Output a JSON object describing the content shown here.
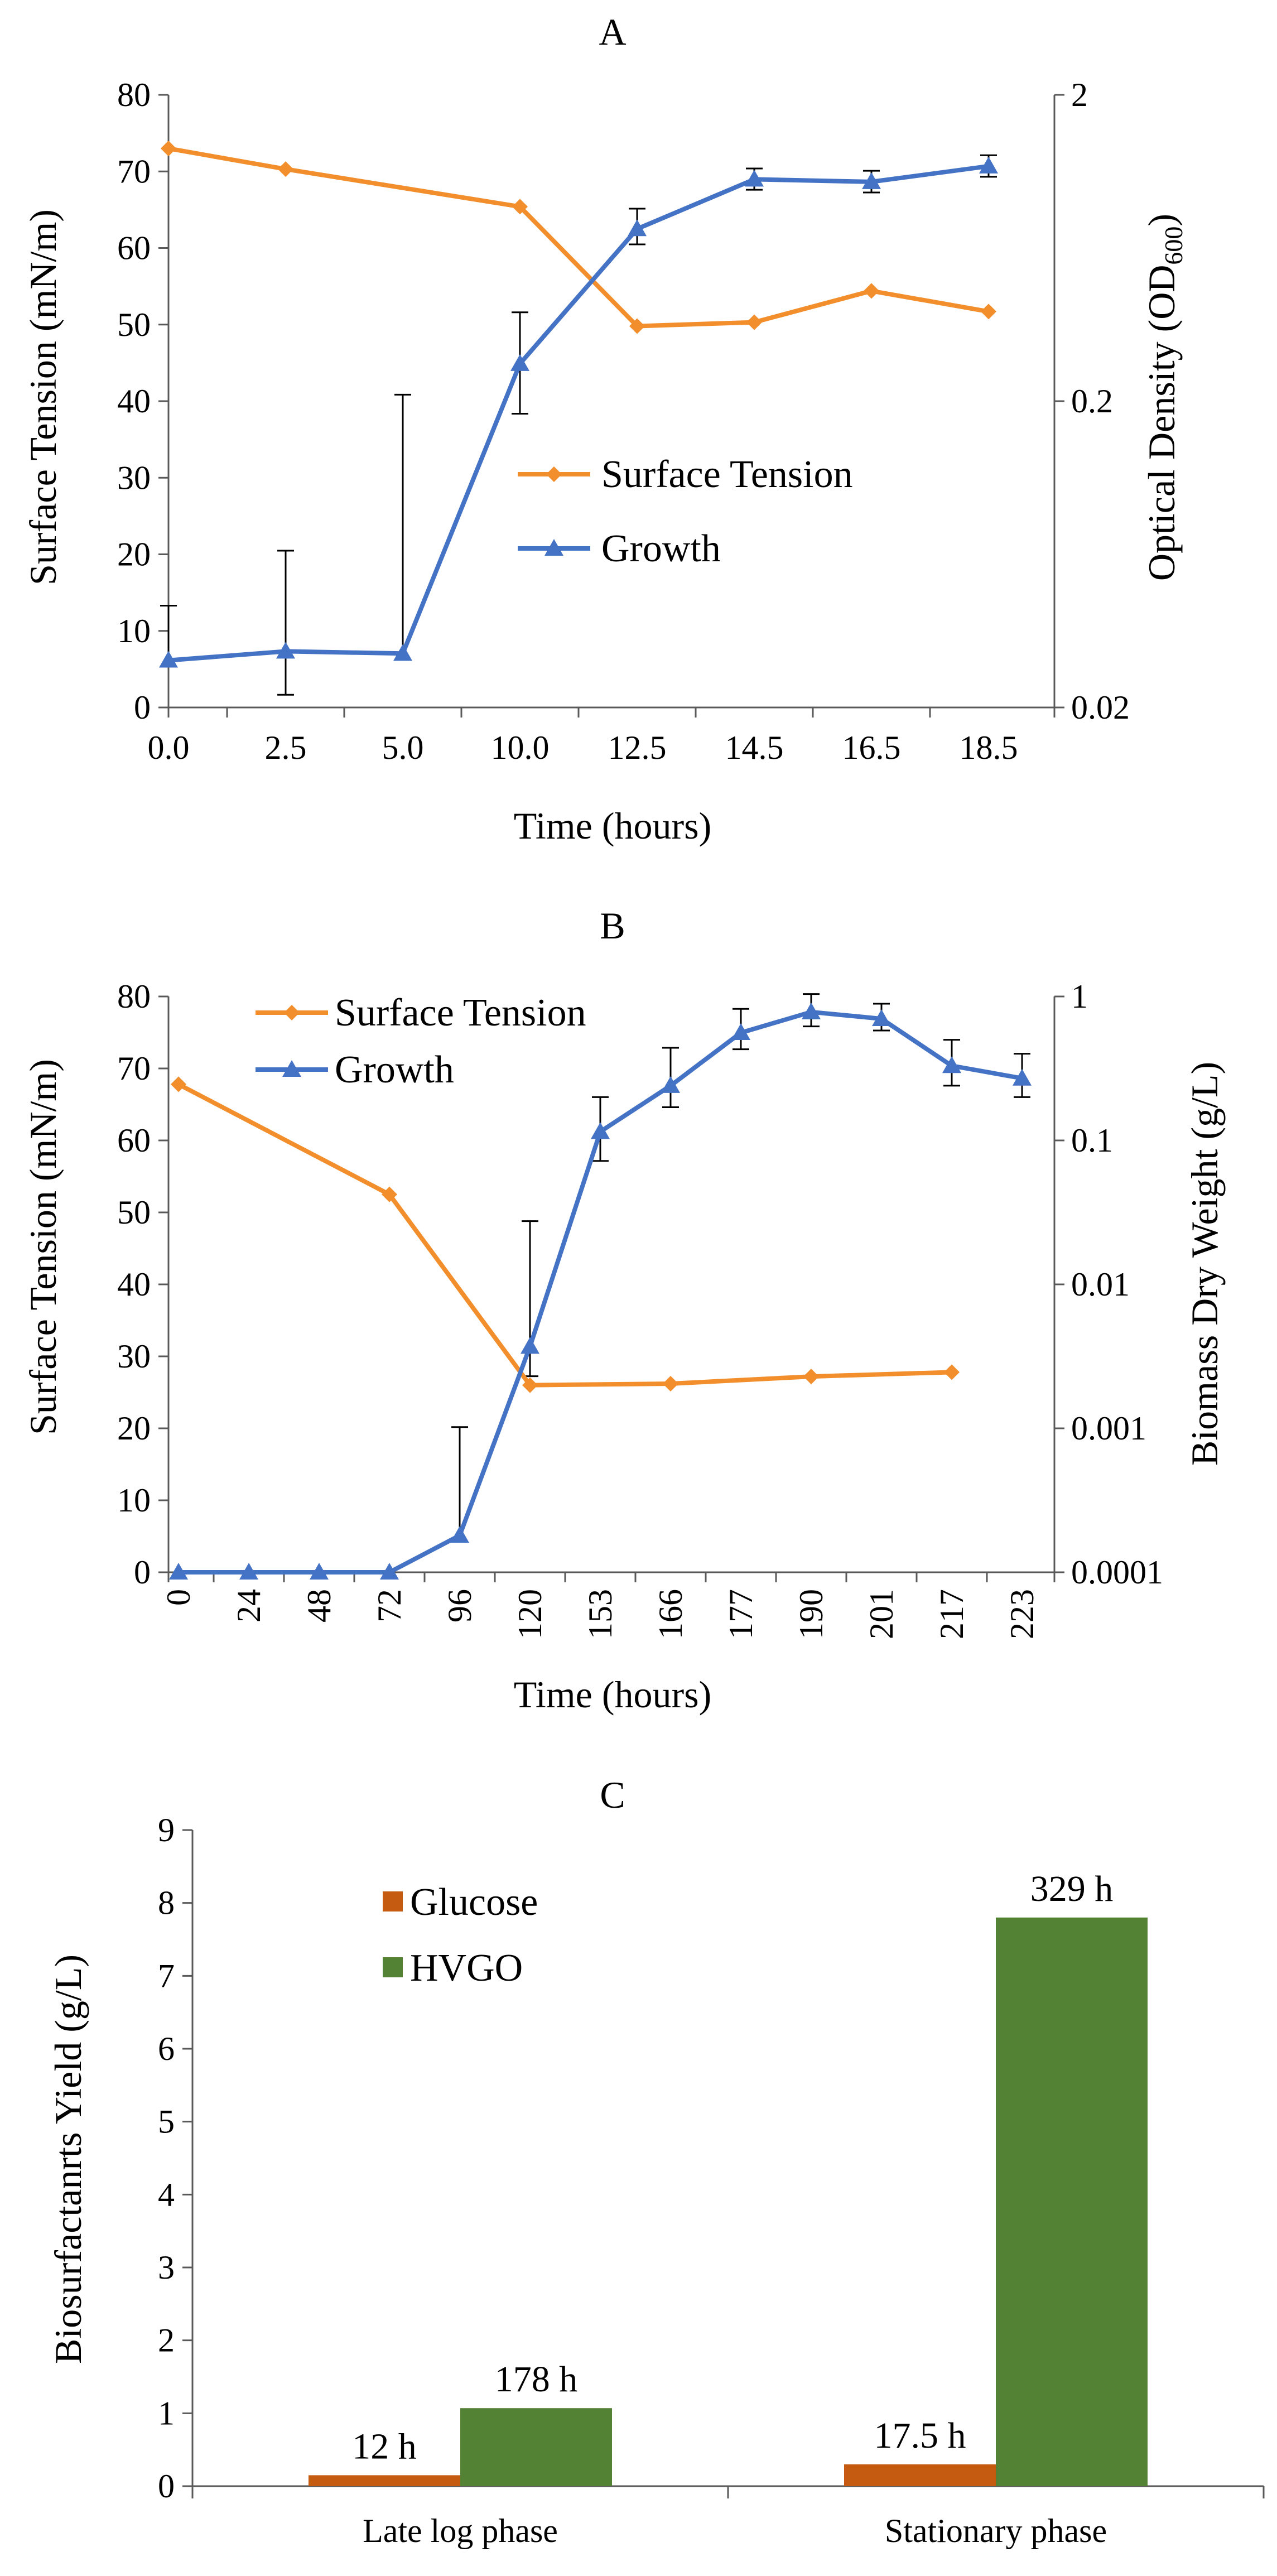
{
  "chart_data": [
    {
      "panel": "A",
      "title": "A",
      "type": "line",
      "xlabel": "Time (hours)",
      "ylabel_left": "Surface Tension (mN/m)",
      "ylabel_right": "Optical Density (OD600)",
      "ylabel_right_parts": {
        "main": "Optical Density (OD",
        "sub": "600",
        "close": ")"
      },
      "x_categories": [
        "0.0",
        "2.5",
        "5.0",
        "10.0",
        "12.5",
        "14.5",
        "16.5",
        "18.5"
      ],
      "ylim_left": [
        0,
        80
      ],
      "yticks_left": [
        "0",
        "10",
        "20",
        "30",
        "40",
        "50",
        "60",
        "70",
        "80"
      ],
      "right_axis_scale": "log",
      "ylim_right": [
        0.02,
        2
      ],
      "yticks_right": [
        "0.02",
        "0.2",
        "2"
      ],
      "series": [
        {
          "name": "Surface Tension",
          "axis": "left",
          "color": "#F28E2B",
          "marker": "diamond",
          "values": [
            73.0,
            70.3,
            null,
            65.4,
            49.8,
            50.3,
            54.4,
            51.7
          ]
        },
        {
          "name": "Growth",
          "axis": "right",
          "color": "#4472C4",
          "marker": "triangle",
          "values": [
            0.0285,
            0.0305,
            0.03,
            0.265,
            0.73,
            1.06,
            1.04,
            1.17
          ],
          "error_upper": [
            0.043,
            0.065,
            0.21,
            0.39,
            0.85,
            1.15,
            1.13,
            1.27
          ],
          "error_lower": [
            0.0285,
            0.022,
            0.03,
            0.182,
            0.65,
            0.98,
            0.96,
            1.08
          ]
        }
      ],
      "legend": [
        "Surface Tension",
        "Growth"
      ],
      "legend_position": "center"
    },
    {
      "panel": "B",
      "title": "B",
      "type": "line",
      "xlabel": "Time (hours)",
      "ylabel_left": "Surface Tension (mN/m)",
      "ylabel_right": "Biomass Dry Weight (g/L)",
      "x_categories": [
        "0",
        "24",
        "48",
        "72",
        "96",
        "120",
        "153",
        "166",
        "177",
        "190",
        "201",
        "217",
        "223"
      ],
      "ylim_left": [
        0,
        80
      ],
      "yticks_left": [
        "0",
        "10",
        "20",
        "30",
        "40",
        "50",
        "60",
        "70",
        "80"
      ],
      "right_axis_scale": "log",
      "ylim_right": [
        0.0001,
        1
      ],
      "yticks_right": [
        "0.0001",
        "0.001",
        "0.01",
        "0.1",
        "1"
      ],
      "series": [
        {
          "name": "Surface Tension",
          "axis": "left",
          "color": "#F28E2B",
          "marker": "diamond",
          "values": [
            67.8,
            null,
            null,
            52.5,
            null,
            26.0,
            null,
            26.2,
            null,
            27.2,
            null,
            27.8,
            null
          ]
        },
        {
          "name": "Growth",
          "axis": "right",
          "color": "#4472C4",
          "marker": "triangle",
          "values": [
            0.0001,
            0.0001,
            0.0001,
            0.0001,
            0.00018,
            0.0037,
            0.115,
            0.24,
            0.56,
            0.78,
            0.7,
            0.33,
            0.27
          ],
          "error_upper": [
            null,
            null,
            null,
            null,
            0.00102,
            0.0275,
            0.2,
            0.44,
            0.82,
            1.04,
            0.89,
            0.5,
            0.4
          ],
          "error_lower": [
            null,
            null,
            null,
            null,
            null,
            0.0023,
            0.072,
            0.17,
            0.43,
            0.62,
            0.58,
            0.24,
            0.2
          ]
        }
      ],
      "legend": [
        "Surface Tension",
        "Growth"
      ],
      "legend_position": "top-left"
    },
    {
      "panel": "C",
      "title": "C",
      "type": "bar",
      "ylabel": "Biosurfactanrts Yield (g/L)",
      "categories": [
        "Late log phase",
        "Stationary phase"
      ],
      "ylim": [
        0,
        9
      ],
      "yticks": [
        "0",
        "1",
        "2",
        "3",
        "4",
        "5",
        "6",
        "7",
        "8",
        "9"
      ],
      "series": [
        {
          "name": "Glucose",
          "color": "#C55A11",
          "values": [
            0.15,
            0.3
          ],
          "labels": [
            "12 h",
            "17.5 h"
          ]
        },
        {
          "name": "HVGO",
          "color": "#548235",
          "values": [
            1.07,
            7.8
          ],
          "labels": [
            "178 h",
            "329 h"
          ]
        }
      ],
      "legend": [
        "Glucose",
        "HVGO"
      ],
      "legend_position": "upper-left"
    }
  ]
}
